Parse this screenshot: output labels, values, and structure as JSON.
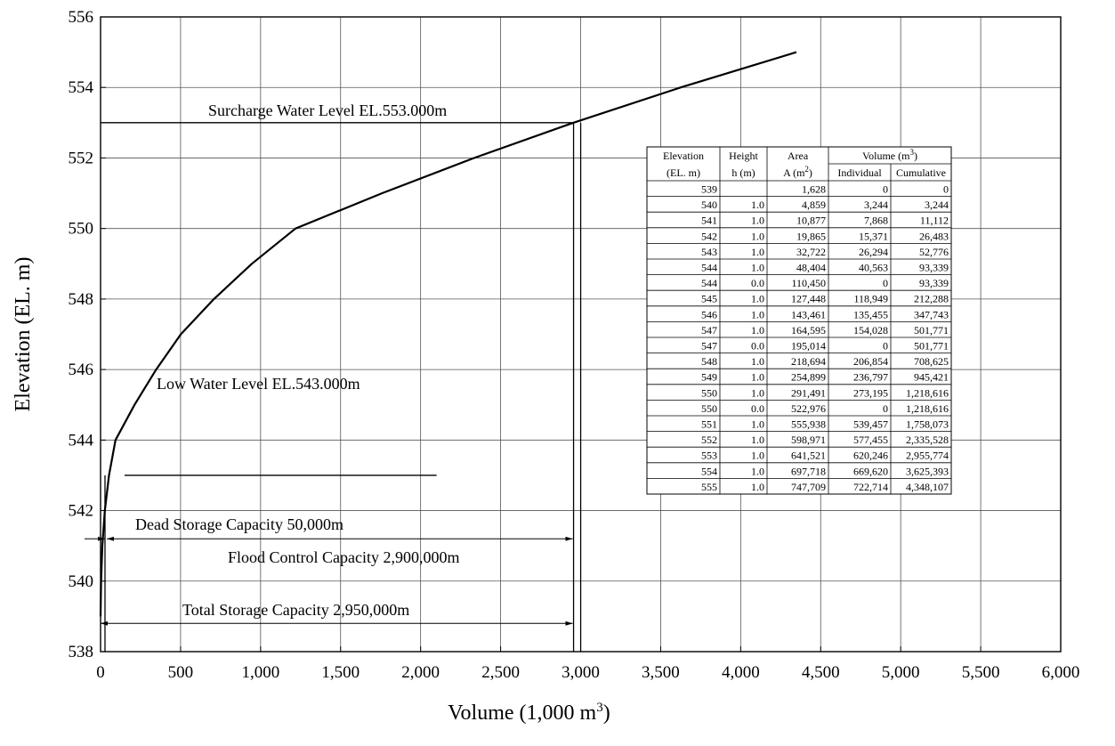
{
  "chart_data": {
    "type": "line",
    "title": "",
    "xlabel": "Volume  (1,000 m",
    "xlabel_sup": "3",
    "xlabel_suffix": ")",
    "ylabel": "Elevation  (EL. m)",
    "xlim": [
      0,
      6000
    ],
    "ylim": [
      538,
      556
    ],
    "grid": true,
    "x_ticks": [
      "0",
      "500",
      "1,000",
      "1,500",
      "2,000",
      "2,500",
      "3,000",
      "3,500",
      "4,000",
      "4,500",
      "5,000",
      "5,500",
      "6,000"
    ],
    "y_ticks": [
      "538",
      "540",
      "542",
      "544",
      "546",
      "548",
      "550",
      "552",
      "554",
      "556"
    ],
    "series": [
      {
        "x": [
          0,
          3.2,
          11.1,
          26.5,
          52.8,
          93.3,
          93.3,
          212.3,
          347.7,
          501.8,
          501.8,
          708.6,
          945.4,
          1218.6,
          1218.6,
          1758.1,
          2335.5,
          2955.8,
          3625.4,
          4348.1
        ],
        "y": [
          539,
          540,
          541,
          542,
          543,
          544,
          544,
          545,
          546,
          547,
          547,
          548,
          549,
          550,
          550,
          551,
          552,
          553,
          554,
          555
        ]
      }
    ],
    "annotations": [
      {
        "text": "Surcharge Water Level EL.553.000m",
        "level": 553,
        "line_x": [
          0,
          2955.8
        ]
      },
      {
        "text": "Low Water Level EL.543.000m",
        "level": 543,
        "line_x": [
          150,
          2100
        ]
      },
      {
        "text": "Dead Storage Capacity  50,000m",
        "arrow_x": [
          0,
          50
        ]
      },
      {
        "text": "Flood Control Capacity  2,900,000m",
        "arrow_x": [
          50,
          2950
        ]
      },
      {
        "text": "Total Storage Capacity  2,950,000m",
        "arrow_x": [
          0,
          2950
        ]
      }
    ],
    "table": {
      "header_row1": [
        "Elevation",
        "Height",
        "Area",
        "Volume (m",
        "3",
        ")"
      ],
      "header_row2": [
        "(EL. m)",
        "h (m)",
        "A (m",
        "2",
        ")",
        "Individual",
        "Cumulative"
      ],
      "rows": [
        [
          "539",
          "",
          "1,628",
          "0",
          "0"
        ],
        [
          "540",
          "1.0",
          "4,859",
          "3,244",
          "3,244"
        ],
        [
          "541",
          "1.0",
          "10,877",
          "7,868",
          "11,112"
        ],
        [
          "542",
          "1.0",
          "19,865",
          "15,371",
          "26,483"
        ],
        [
          "543",
          "1.0",
          "32,722",
          "26,294",
          "52,776"
        ],
        [
          "544",
          "1.0",
          "48,404",
          "40,563",
          "93,339"
        ],
        [
          "544",
          "0.0",
          "110,450",
          "0",
          "93,339"
        ],
        [
          "545",
          "1.0",
          "127,448",
          "118,949",
          "212,288"
        ],
        [
          "546",
          "1.0",
          "143,461",
          "135,455",
          "347,743"
        ],
        [
          "547",
          "1.0",
          "164,595",
          "154,028",
          "501,771"
        ],
        [
          "547",
          "0.0",
          "195,014",
          "0",
          "501,771"
        ],
        [
          "548",
          "1.0",
          "218,694",
          "206,854",
          "708,625"
        ],
        [
          "549",
          "1.0",
          "254,899",
          "236,797",
          "945,421"
        ],
        [
          "550",
          "1.0",
          "291,491",
          "273,195",
          "1,218,616"
        ],
        [
          "550",
          "0.0",
          "522,976",
          "0",
          "1,218,616"
        ],
        [
          "551",
          "1.0",
          "555,938",
          "539,457",
          "1,758,073"
        ],
        [
          "552",
          "1.0",
          "598,971",
          "577,455",
          "2,335,528"
        ],
        [
          "553",
          "1.0",
          "641,521",
          "620,246",
          "2,955,774"
        ],
        [
          "554",
          "1.0",
          "697,718",
          "669,620",
          "3,625,393"
        ],
        [
          "555",
          "1.0",
          "747,709",
          "722,714",
          "4,348,107"
        ]
      ]
    }
  }
}
